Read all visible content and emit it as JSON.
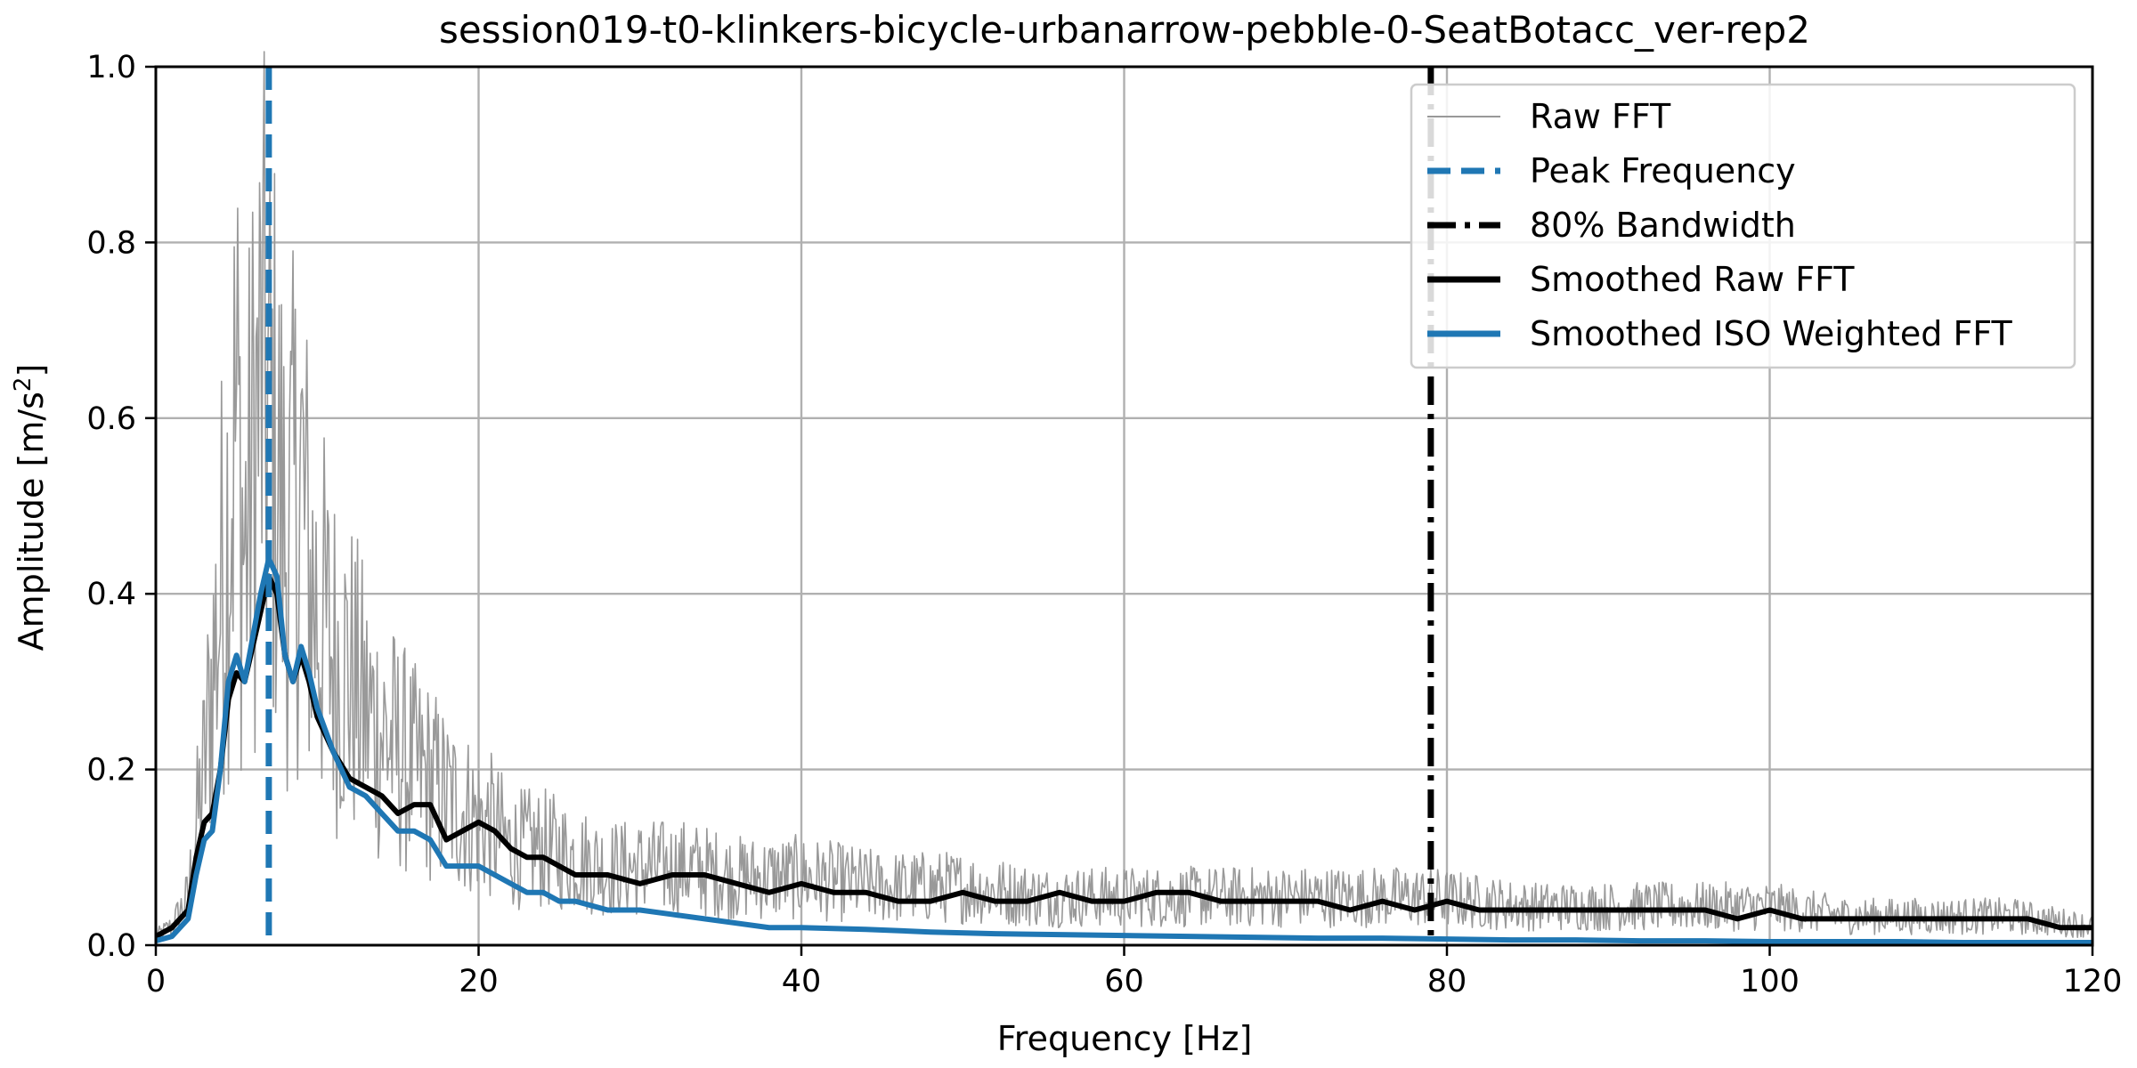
{
  "chart_data": {
    "type": "line",
    "title": "session019-t0-klinkers-bicycle-urbanarrow-pebble-0-SeatBotacc_ver-rep2",
    "xlabel": "Frequency [Hz]",
    "ylabel_main": "Amplitude [m/s",
    "ylabel_sup": "2",
    "ylabel_end": "]",
    "xlim": [
      0,
      120
    ],
    "ylim": [
      0,
      1.0
    ],
    "xticks": [
      0,
      20,
      40,
      60,
      80,
      100,
      120
    ],
    "xtick_labels": [
      "0",
      "20",
      "40",
      "60",
      "80",
      "100",
      "120"
    ],
    "yticks": [
      0.0,
      0.2,
      0.4,
      0.6,
      0.8,
      1.0
    ],
    "ytick_labels": [
      "0.0",
      "0.2",
      "0.4",
      "0.6",
      "0.8",
      "1.0"
    ],
    "grid": true,
    "legend_position": "top-right",
    "vlines": [
      {
        "name": "Peak Frequency",
        "x": 7.0,
        "color": "#1f77b4",
        "style": "dashed"
      },
      {
        "name": "80% Bandwidth",
        "x": 79.0,
        "color": "#000000",
        "style": "dashdot"
      }
    ],
    "series": [
      {
        "name": "Raw FFT",
        "color": "#999999",
        "style": "thin",
        "x": [
          0,
          1,
          2,
          2.5,
          3,
          3.5,
          4,
          4.5,
          5,
          5.5,
          6,
          6.5,
          7,
          7.5,
          8,
          8.5,
          9,
          9.5,
          10,
          11,
          12,
          13,
          14,
          15,
          16,
          17,
          18,
          19,
          20,
          21,
          22,
          24,
          26,
          28,
          30,
          33,
          36,
          40,
          45,
          50,
          55,
          60,
          65,
          70,
          75,
          79,
          85,
          90,
          95,
          100,
          105,
          110,
          115,
          120
        ],
        "y": [
          0.01,
          0.02,
          0.05,
          0.12,
          0.18,
          0.28,
          0.36,
          0.45,
          0.55,
          0.4,
          0.5,
          0.58,
          0.55,
          0.5,
          0.42,
          0.44,
          0.48,
          0.38,
          0.35,
          0.3,
          0.28,
          0.24,
          0.22,
          0.2,
          0.18,
          0.17,
          0.15,
          0.14,
          0.13,
          0.12,
          0.1,
          0.1,
          0.09,
          0.08,
          0.08,
          0.08,
          0.07,
          0.07,
          0.06,
          0.06,
          0.05,
          0.05,
          0.05,
          0.05,
          0.05,
          0.05,
          0.04,
          0.04,
          0.04,
          0.04,
          0.03,
          0.03,
          0.03,
          0.02
        ]
      },
      {
        "name": "Smoothed Raw FFT",
        "color": "#000000",
        "style": "thick",
        "x": [
          0,
          1,
          2,
          2.5,
          3,
          3.5,
          4,
          4.5,
          5,
          5.5,
          6,
          6.5,
          7,
          7.5,
          8,
          8.5,
          9,
          9.5,
          10,
          11,
          12,
          13,
          14,
          15,
          16,
          17,
          18,
          19,
          20,
          21,
          22,
          23,
          24,
          25,
          26,
          28,
          30,
          32,
          34,
          36,
          38,
          40,
          42,
          44,
          46,
          48,
          50,
          52,
          54,
          56,
          58,
          60,
          62,
          64,
          66,
          68,
          70,
          72,
          74,
          76,
          78,
          80,
          82,
          84,
          86,
          88,
          90,
          92,
          94,
          96,
          98,
          100,
          102,
          104,
          106,
          108,
          110,
          112,
          114,
          116,
          118,
          120
        ],
        "y": [
          0.01,
          0.02,
          0.04,
          0.1,
          0.14,
          0.15,
          0.2,
          0.28,
          0.31,
          0.3,
          0.34,
          0.38,
          0.42,
          0.4,
          0.33,
          0.3,
          0.33,
          0.3,
          0.26,
          0.22,
          0.19,
          0.18,
          0.17,
          0.15,
          0.16,
          0.16,
          0.12,
          0.13,
          0.14,
          0.13,
          0.11,
          0.1,
          0.1,
          0.09,
          0.08,
          0.08,
          0.07,
          0.08,
          0.08,
          0.07,
          0.06,
          0.07,
          0.06,
          0.06,
          0.05,
          0.05,
          0.06,
          0.05,
          0.05,
          0.06,
          0.05,
          0.05,
          0.06,
          0.06,
          0.05,
          0.05,
          0.05,
          0.05,
          0.04,
          0.05,
          0.04,
          0.05,
          0.04,
          0.04,
          0.04,
          0.04,
          0.04,
          0.04,
          0.04,
          0.04,
          0.03,
          0.04,
          0.03,
          0.03,
          0.03,
          0.03,
          0.03,
          0.03,
          0.03,
          0.03,
          0.02,
          0.02
        ]
      },
      {
        "name": "Smoothed ISO Weighted FFT",
        "color": "#1f77b4",
        "style": "thick",
        "x": [
          0,
          1,
          2,
          2.5,
          3,
          3.5,
          4,
          4.5,
          5,
          5.5,
          6,
          6.5,
          7,
          7.5,
          8,
          8.5,
          9,
          9.5,
          10,
          11,
          12,
          13,
          14,
          15,
          16,
          17,
          18,
          19,
          20,
          21,
          22,
          23,
          24,
          25,
          26,
          28,
          30,
          32,
          34,
          36,
          38,
          40,
          44,
          48,
          52,
          56,
          60,
          64,
          68,
          72,
          76,
          80,
          84,
          88,
          92,
          96,
          100,
          104,
          108,
          112,
          116,
          120
        ],
        "y": [
          0.005,
          0.01,
          0.03,
          0.08,
          0.12,
          0.13,
          0.2,
          0.3,
          0.33,
          0.3,
          0.35,
          0.4,
          0.44,
          0.42,
          0.33,
          0.3,
          0.34,
          0.31,
          0.27,
          0.22,
          0.18,
          0.17,
          0.15,
          0.13,
          0.13,
          0.12,
          0.09,
          0.09,
          0.09,
          0.08,
          0.07,
          0.06,
          0.06,
          0.05,
          0.05,
          0.04,
          0.04,
          0.035,
          0.03,
          0.025,
          0.02,
          0.02,
          0.018,
          0.015,
          0.013,
          0.012,
          0.011,
          0.01,
          0.009,
          0.008,
          0.008,
          0.007,
          0.006,
          0.006,
          0.005,
          0.005,
          0.004,
          0.004,
          0.004,
          0.003,
          0.003,
          0.003
        ]
      }
    ],
    "legend": [
      "Raw FFT",
      "Peak Frequency",
      "80% Bandwidth",
      "Smoothed Raw FFT",
      "Smoothed ISO Weighted FFT"
    ]
  }
}
